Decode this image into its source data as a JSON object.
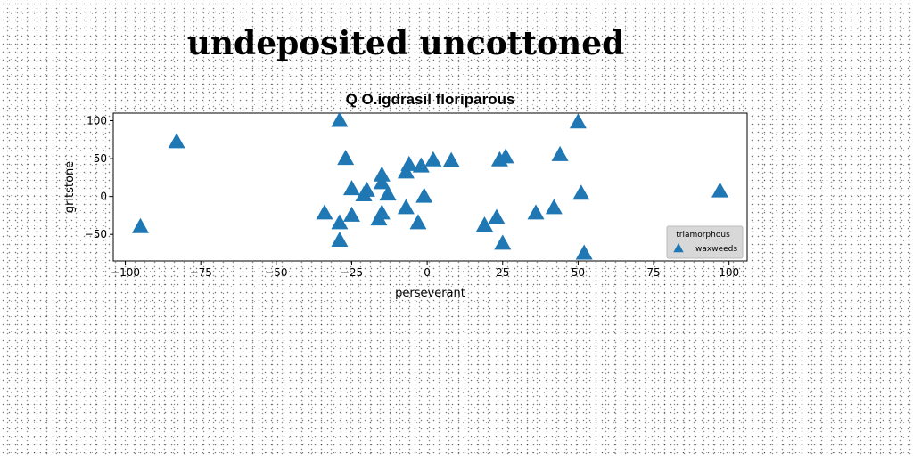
{
  "page_title": "undeposited uncottoned",
  "chart_data": {
    "type": "scatter",
    "title": "Q O.igdrasil floriparous",
    "xlabel": "perseverant",
    "ylabel": "gritstone",
    "xlim": [
      -104,
      106
    ],
    "ylim": [
      -85,
      110
    ],
    "xticks": [
      -100,
      -75,
      -50,
      -25,
      0,
      25,
      50,
      75,
      100
    ],
    "yticks": [
      100,
      50,
      0,
      -50
    ],
    "xtick_labels": [
      "−100",
      "−75",
      "−50",
      "−25",
      "0",
      "25",
      "50",
      "75",
      "100"
    ],
    "ytick_labels": [
      "100",
      "50",
      "0",
      "−50"
    ],
    "grid": false,
    "legend": {
      "title": "triamorphous",
      "position": "lower-right"
    },
    "series": [
      {
        "name": "waxweeds",
        "marker": "triangle-up",
        "color": "#1f77b4",
        "points": [
          [
            -95,
            -40
          ],
          [
            -83,
            72
          ],
          [
            -34,
            -22
          ],
          [
            -29,
            100
          ],
          [
            -29,
            -35
          ],
          [
            -29,
            -58
          ],
          [
            -27,
            50
          ],
          [
            -25,
            10
          ],
          [
            -25,
            -25
          ],
          [
            -21,
            2
          ],
          [
            -20,
            8
          ],
          [
            -16,
            -30
          ],
          [
            -15,
            28
          ],
          [
            -15,
            18
          ],
          [
            -15,
            -22
          ],
          [
            -13,
            3
          ],
          [
            -7,
            32
          ],
          [
            -7,
            -15
          ],
          [
            -6,
            42
          ],
          [
            -3,
            -35
          ],
          [
            -2,
            40
          ],
          [
            -1,
            0
          ],
          [
            2,
            48
          ],
          [
            8,
            47
          ],
          [
            19,
            -38
          ],
          [
            23,
            -28
          ],
          [
            24,
            48
          ],
          [
            25,
            -62
          ],
          [
            26,
            52
          ],
          [
            36,
            -22
          ],
          [
            42,
            -15
          ],
          [
            44,
            55
          ],
          [
            50,
            98
          ],
          [
            51,
            4
          ],
          [
            52,
            -75
          ],
          [
            97,
            7
          ]
        ]
      }
    ]
  }
}
